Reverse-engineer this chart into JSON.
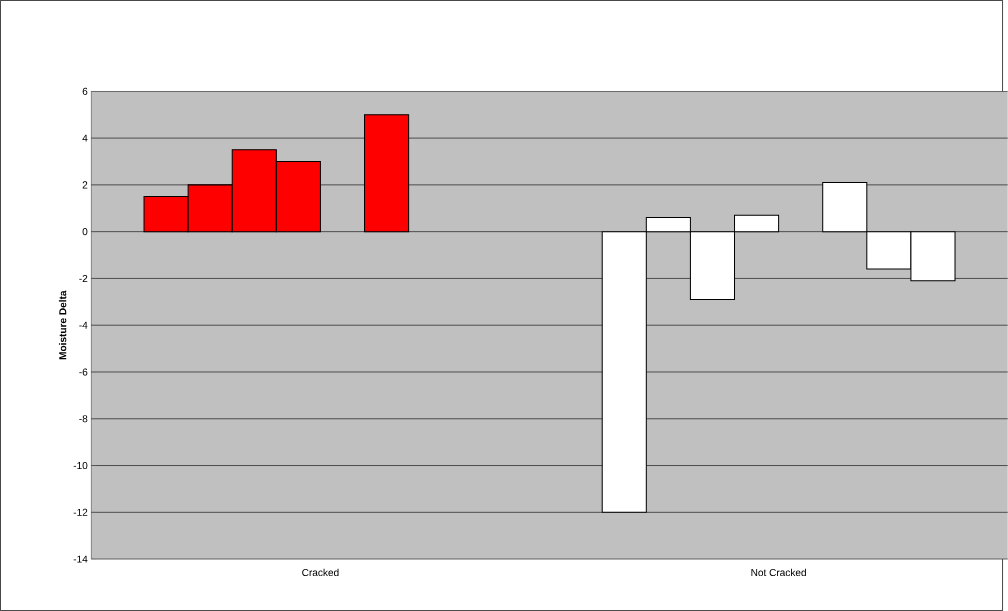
{
  "chart_data": {
    "type": "bar",
    "ylabel": "Moisture Delta",
    "categories": [
      "Cracked",
      "Not Cracked"
    ],
    "series": [
      {
        "values": [
          1.5,
          -12
        ],
        "colors": [
          "#ff0000",
          "#ffffff"
        ]
      },
      {
        "values": [
          2,
          0.6
        ],
        "colors": [
          "#ff0000",
          "#ffffff"
        ]
      },
      {
        "values": [
          3.5,
          -2.9
        ],
        "colors": [
          "#ff0000",
          "#ffffff"
        ]
      },
      {
        "values": [
          3,
          0.7
        ],
        "colors": [
          "#ff0000",
          "#ffffff"
        ]
      },
      {
        "values": [
          null,
          null
        ],
        "colors": [
          null,
          null
        ]
      },
      {
        "values": [
          5,
          2.1
        ],
        "colors": [
          "#ff0000",
          "#ffffff"
        ]
      },
      {
        "values": [
          null,
          -1.6
        ],
        "colors": [
          null,
          "#ffffff"
        ]
      },
      {
        "values": [
          null,
          -2.1
        ],
        "colors": [
          null,
          "#ffffff"
        ]
      }
    ],
    "ylim": [
      -14,
      6
    ],
    "yticks": [
      -14,
      -12,
      -10,
      -8,
      -6,
      -4,
      -2,
      0,
      2,
      4,
      6
    ],
    "grid": "y"
  }
}
